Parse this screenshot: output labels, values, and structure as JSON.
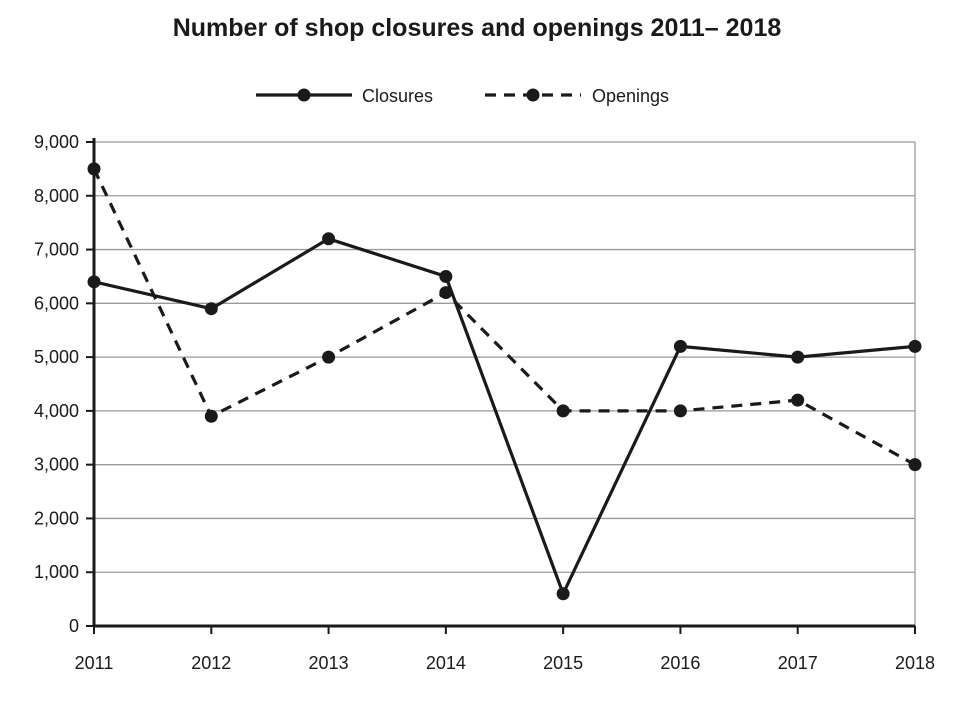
{
  "chart_data": {
    "type": "line",
    "title": "Number of shop closures and openings 2011– 2018",
    "xlabel": "",
    "ylabel": "",
    "x": [
      "2011",
      "2012",
      "2013",
      "2014",
      "2015",
      "2016",
      "2017",
      "2018"
    ],
    "ylim": [
      0,
      9000
    ],
    "yticks": [
      0,
      1000,
      2000,
      3000,
      4000,
      5000,
      6000,
      7000,
      8000,
      9000
    ],
    "ytick_labels": [
      "0",
      "1,000",
      "2,000",
      "3,000",
      "4,000",
      "5,000",
      "6,000",
      "7,000",
      "8,000",
      "9,000"
    ],
    "grid": true,
    "legend_position": "top-center",
    "series": [
      {
        "name": "Closures",
        "line_style": "solid",
        "color": "#1a1a1a",
        "values": [
          6400,
          5900,
          7200,
          6500,
          600,
          5200,
          5000,
          5200
        ]
      },
      {
        "name": "Openings",
        "line_style": "dashed",
        "color": "#1a1a1a",
        "values": [
          8500,
          3900,
          5000,
          6200,
          4000,
          4000,
          4200,
          3000
        ]
      }
    ]
  }
}
